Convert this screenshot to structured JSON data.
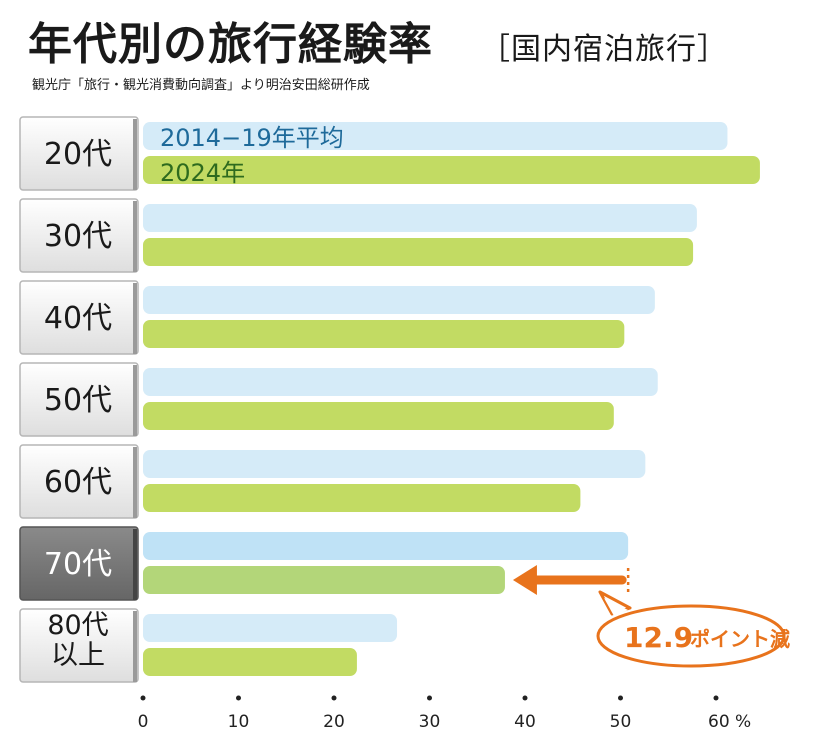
{
  "header": {
    "title": "年代別の旅行経験率",
    "subtitle": "［国内宿泊旅行］",
    "source": "観光庁「旅行・観光消費動向調査」より明治安田総研作成"
  },
  "chart_data": {
    "type": "bar",
    "orientation": "horizontal",
    "categories": [
      "20代",
      "30代",
      "40代",
      "50代",
      "60代",
      "70代",
      "80代\n以上"
    ],
    "series": [
      {
        "name": "2014−19年平均",
        "values": [
          61.2,
          58.0,
          53.6,
          53.9,
          52.6,
          50.8,
          26.6
        ],
        "color": "#d5ebf8"
      },
      {
        "name": "2024年",
        "values": [
          64.6,
          57.6,
          50.4,
          49.3,
          45.8,
          37.9,
          22.4
        ],
        "color": "#c2db63"
      }
    ],
    "xlim": [
      0,
      60
    ],
    "xticks": [
      0,
      10,
      20,
      30,
      40,
      50,
      60
    ],
    "x_unit": "%",
    "grid": false,
    "highlight": {
      "category_index": 5,
      "color": "#777777"
    },
    "annotation": {
      "value": "12.9",
      "text": "ポイント減",
      "color": "#e8731c"
    }
  }
}
